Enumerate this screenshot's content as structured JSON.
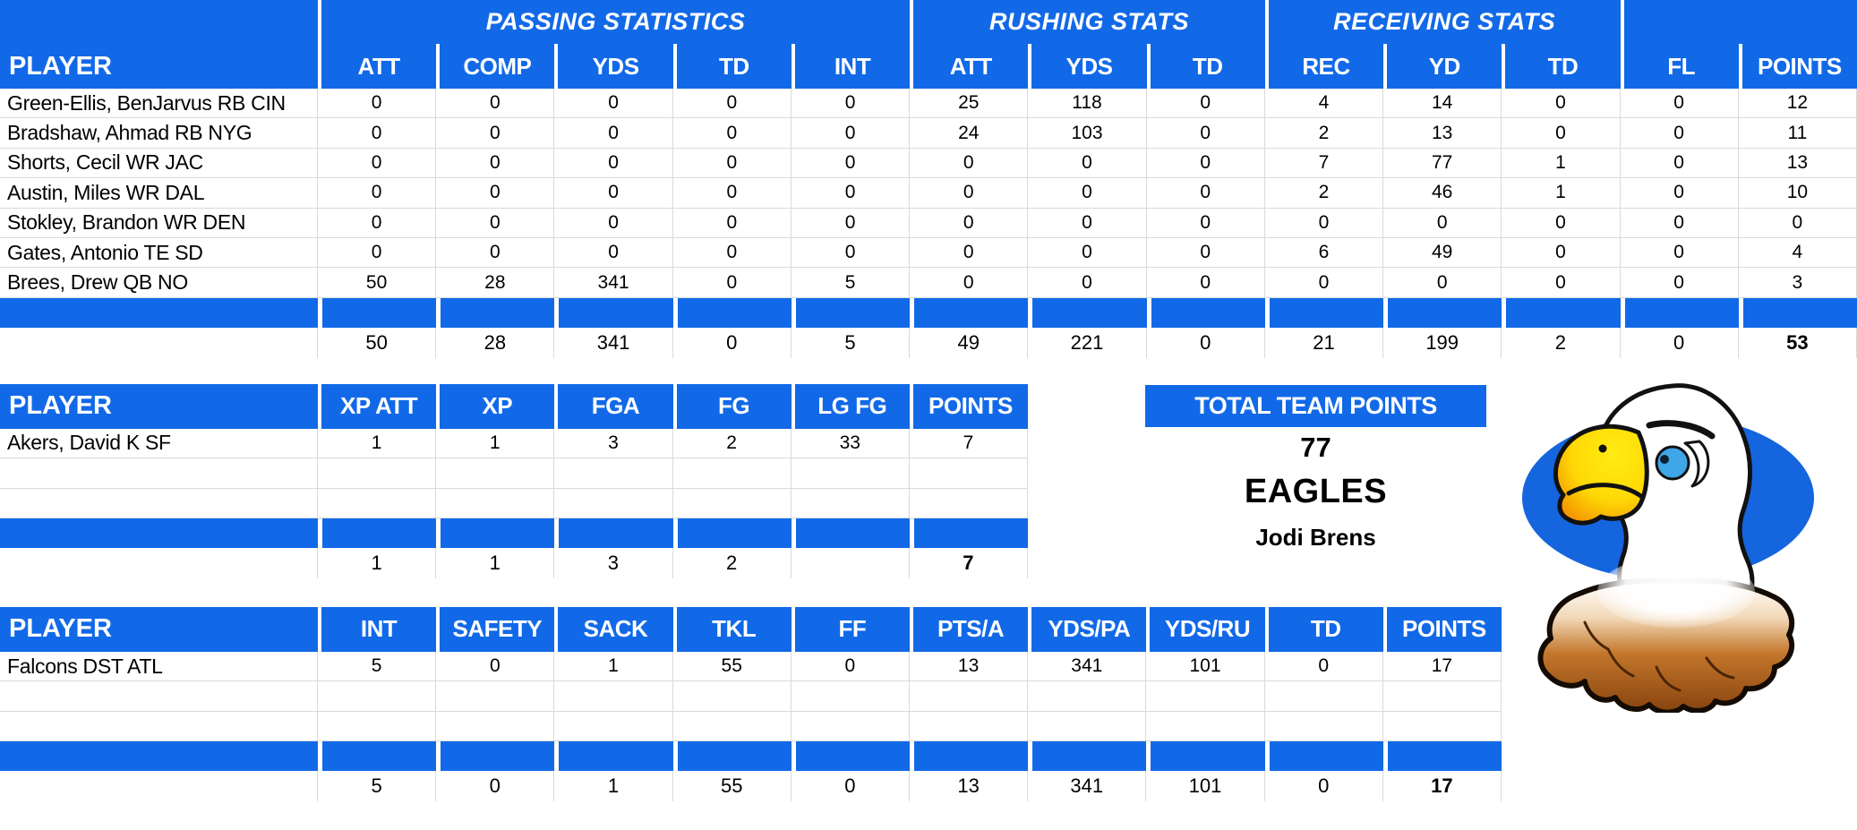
{
  "colors": {
    "header_blue": "#1169E8",
    "grid_line": "#DADADA",
    "logo_oval_blue": "#1565DE",
    "text": "#000000",
    "header_text": "#FFFFFF"
  },
  "offense_table": {
    "section_titles": {
      "passing": "PASSING STATISTICS",
      "rushing": "RUSHING STATS",
      "receiving": "RECEIVING STATS"
    },
    "columns": [
      "PLAYER",
      "ATT",
      "COMP",
      "YDS",
      "TD",
      "INT",
      "ATT",
      "YDS",
      "TD",
      "REC",
      "YD",
      "TD",
      "FL",
      "POINTS"
    ],
    "rows": [
      [
        "Green-Ellis, BenJarvus RB CIN",
        "0",
        "0",
        "0",
        "0",
        "0",
        "25",
        "118",
        "0",
        "4",
        "14",
        "0",
        "0",
        "12"
      ],
      [
        "Bradshaw, Ahmad RB NYG",
        "0",
        "0",
        "0",
        "0",
        "0",
        "24",
        "103",
        "0",
        "2",
        "13",
        "0",
        "0",
        "11"
      ],
      [
        "Shorts, Cecil WR JAC",
        "0",
        "0",
        "0",
        "0",
        "0",
        "0",
        "0",
        "0",
        "7",
        "77",
        "1",
        "0",
        "13"
      ],
      [
        "Austin, Miles WR DAL",
        "0",
        "0",
        "0",
        "0",
        "0",
        "0",
        "0",
        "0",
        "2",
        "46",
        "1",
        "0",
        "10"
      ],
      [
        "Stokley, Brandon WR DEN",
        "0",
        "0",
        "0",
        "0",
        "0",
        "0",
        "0",
        "0",
        "0",
        "0",
        "0",
        "0",
        "0"
      ],
      [
        "Gates, Antonio TE SD",
        "0",
        "0",
        "0",
        "0",
        "0",
        "0",
        "0",
        "0",
        "6",
        "49",
        "0",
        "0",
        "4"
      ],
      [
        "Brees, Drew QB NO",
        "50",
        "28",
        "341",
        "0",
        "5",
        "0",
        "0",
        "0",
        "0",
        "0",
        "0",
        "0",
        "3"
      ]
    ],
    "totals": [
      "",
      "50",
      "28",
      "341",
      "0",
      "5",
      "49",
      "221",
      "0",
      "21",
      "199",
      "2",
      "0",
      "53"
    ]
  },
  "kicker_table": {
    "columns": [
      "PLAYER",
      "XP ATT",
      "XP",
      "FGA",
      "FG",
      "LG FG",
      "POINTS"
    ],
    "rows": [
      [
        "Akers, David K SF",
        "1",
        "1",
        "3",
        "2",
        "33",
        "7"
      ],
      [
        "",
        "",
        "",
        "",
        "",
        "",
        ""
      ],
      [
        "",
        "",
        "",
        "",
        "",
        "",
        ""
      ]
    ],
    "totals": [
      "",
      "1",
      "1",
      "3",
      "2",
      "",
      "7"
    ]
  },
  "defense_table": {
    "columns": [
      "PLAYER",
      "INT",
      "SAFETY",
      "SACK",
      "TKL",
      "FF",
      "PTS/A",
      "YDS/PA",
      "YDS/RU",
      "TD",
      "POINTS"
    ],
    "rows": [
      [
        "Falcons DST ATL",
        "5",
        "0",
        "1",
        "55",
        "0",
        "13",
        "341",
        "101",
        "0",
        "17"
      ],
      [
        "",
        "",
        "",
        "",
        "",
        "",
        "",
        "",
        "",
        "",
        ""
      ],
      [
        "",
        "",
        "",
        "",
        "",
        "",
        "",
        "",
        "",
        "",
        ""
      ]
    ],
    "totals": [
      "",
      "5",
      "0",
      "1",
      "55",
      "0",
      "13",
      "341",
      "101",
      "0",
      "17"
    ]
  },
  "team_summary": {
    "title": "TOTAL TEAM POINTS",
    "points": "77",
    "team_name": "EAGLES",
    "owner": "Jodi Brens"
  },
  "logo": {
    "description": "eagle head clipart on blue oval"
  }
}
